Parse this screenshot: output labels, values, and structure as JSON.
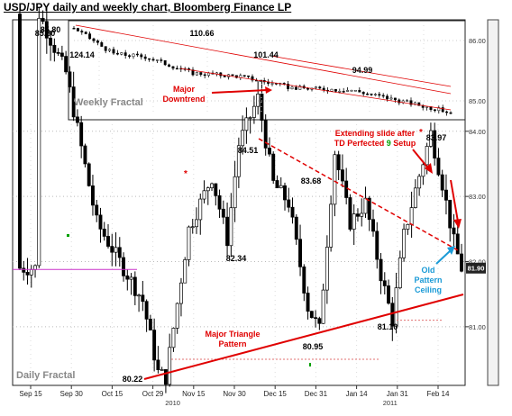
{
  "title": "USD/JPY daily and weekly chart, Bloomberg Finance LP",
  "chart_data": [
    {
      "name": "Daily Fractal",
      "type": "candlestick",
      "panel_label": "Daily Fractal",
      "x_ticks": [
        "Sep 15",
        "Sep 30",
        "Oct 15",
        "Oct 29",
        "Nov 15",
        "Nov 30",
        "Dec 15",
        "Dec 31",
        "Jan 14",
        "Jan 31",
        "Feb 14"
      ],
      "x_year_labels": [
        "2010",
        "2011"
      ],
      "y_ticks": [
        81.0,
        82.0,
        83.0,
        84.0
      ],
      "y_tick_labels": [
        "81.00",
        "82.00",
        "83.00",
        "84.00"
      ],
      "ylim": [
        80.1,
        85.6
      ],
      "last_price": "81.90",
      "price_labels": [
        "85.80",
        "84.51",
        "83.68",
        "83.97",
        "82.34",
        "80.95",
        "81.10",
        "80.22"
      ],
      "anchors": [
        {
          "date_index": 5,
          "price": 85.8
        },
        {
          "date_index": 12,
          "price": 84.9
        },
        {
          "date_index": 20,
          "price": 82.6
        },
        {
          "date_index": 32,
          "price": 81.4
        },
        {
          "date_index": 36,
          "price": 80.3
        },
        {
          "date_index": 38,
          "price": 80.22
        },
        {
          "date_index": 44,
          "price": 82.5
        },
        {
          "date_index": 50,
          "price": 83.3
        },
        {
          "date_index": 54,
          "price": 82.34
        },
        {
          "date_index": 57,
          "price": 83.8
        },
        {
          "date_index": 62,
          "price": 84.51
        },
        {
          "date_index": 66,
          "price": 83.2
        },
        {
          "date_index": 70,
          "price": 82.9
        },
        {
          "date_index": 75,
          "price": 81.3
        },
        {
          "date_index": 78,
          "price": 80.95
        },
        {
          "date_index": 82,
          "price": 83.68
        },
        {
          "date_index": 86,
          "price": 82.6
        },
        {
          "date_index": 90,
          "price": 82.9
        },
        {
          "date_index": 94,
          "price": 81.8
        },
        {
          "date_index": 97,
          "price": 81.1
        },
        {
          "date_index": 100,
          "price": 82.4
        },
        {
          "date_index": 103,
          "price": 83.1
        },
        {
          "date_index": 107,
          "price": 83.97
        },
        {
          "date_index": 110,
          "price": 83.2
        },
        {
          "date_index": 113,
          "price": 82.3
        },
        {
          "date_index": 115,
          "price": 81.9
        }
      ],
      "annotations": {
        "triangle": "Major Triangle\nPattern",
        "slide": "Extending slide after\nTD Perfected ",
        "setup_number": "9",
        "setup_word": " Setup",
        "ceiling": "Old\nPattern\nCeiling"
      }
    },
    {
      "name": "Weekly Fractal",
      "type": "candlestick",
      "panel_label": "Weekly Fractal",
      "y_ticks": [
        85.0,
        86.0
      ],
      "y_tick_labels": [
        "85.00",
        "86.00"
      ],
      "price_labels": [
        "124.14",
        "110.66",
        "101.44",
        "94.99"
      ],
      "anchors": [
        {
          "week_index": 0,
          "price": 124.14
        },
        {
          "week_index": 10,
          "price": 112.0
        },
        {
          "week_index": 18,
          "price": 110.66
        },
        {
          "week_index": 30,
          "price": 103.0
        },
        {
          "week_index": 42,
          "price": 101.44
        },
        {
          "week_index": 55,
          "price": 96.0
        },
        {
          "week_index": 70,
          "price": 94.99
        },
        {
          "week_index": 82,
          "price": 90.0
        },
        {
          "week_index": 95,
          "price": 84.5
        }
      ],
      "annotations": {
        "downtrend": "Major\nDowntrend"
      }
    }
  ],
  "colors": {
    "bull": "#ffffff",
    "bear": "#000000",
    "trend_red": "#e00000",
    "ceiling_blue": "#1a9ad6",
    "setup_green": "#00a000",
    "title_text": "#000000"
  }
}
